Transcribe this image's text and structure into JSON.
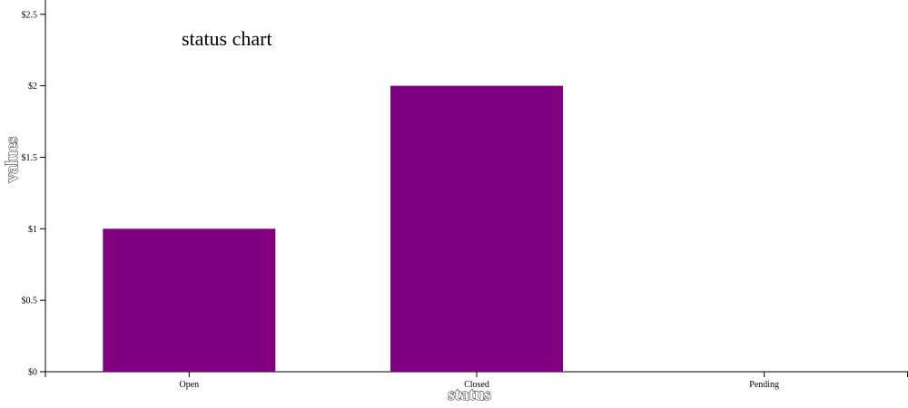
{
  "chart_data": {
    "type": "bar",
    "title": "status chart",
    "xlabel": "status",
    "ylabel": "values",
    "categories": [
      "Open",
      "Closed",
      "Pending"
    ],
    "values": [
      1,
      2,
      0
    ],
    "ylim": [
      0,
      2.6
    ],
    "yticks": [
      0,
      0.5,
      1,
      1.5,
      2,
      2.5
    ],
    "ytick_labels": [
      "$0",
      "$0.5",
      "$1",
      "$1.5",
      "$2",
      "$2.5"
    ],
    "bar_color": "#800080",
    "grid": false,
    "legend": "none"
  }
}
